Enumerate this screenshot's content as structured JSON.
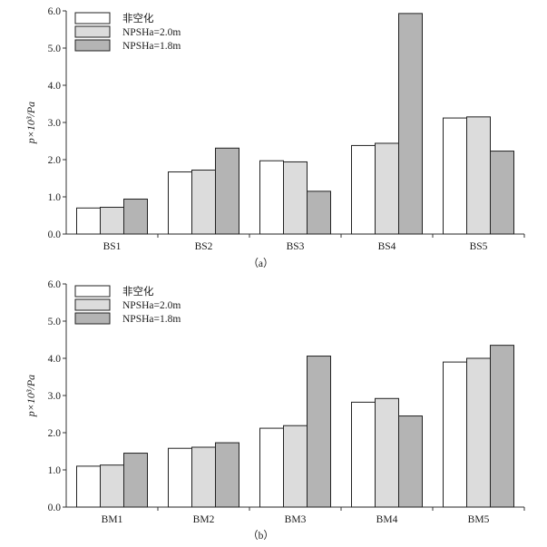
{
  "chart_data": [
    {
      "type": "bar",
      "panel_label": "（a）",
      "ylabel": "p×10³/Pa",
      "ylim": [
        0,
        6
      ],
      "yticks": [
        "0.0",
        "1.0",
        "2.0",
        "3.0",
        "4.0",
        "5.0",
        "6.0"
      ],
      "categories": [
        "BS1",
        "BS2",
        "BS3",
        "BS4",
        "BS5"
      ],
      "legend_position": "top-left",
      "series": [
        {
          "name": "非空化",
          "color": "#ffffff",
          "values": [
            0.7,
            1.67,
            1.97,
            2.38,
            3.12
          ]
        },
        {
          "name": "NPSHa=2.0m",
          "color": "#dcdcdc",
          "values": [
            0.72,
            1.72,
            1.94,
            2.44,
            3.15
          ]
        },
        {
          "name": "NPSHa=1.8m",
          "color": "#b4b4b4",
          "values": [
            0.94,
            2.31,
            1.15,
            5.93,
            2.23
          ]
        }
      ]
    },
    {
      "type": "bar",
      "panel_label": "（b）",
      "ylabel": "p×10³/Pa",
      "ylim": [
        0,
        6
      ],
      "yticks": [
        "0.0",
        "1.0",
        "2.0",
        "3.0",
        "4.0",
        "5.0",
        "6.0"
      ],
      "categories": [
        "BM1",
        "BM2",
        "BM3",
        "BM4",
        "BM5"
      ],
      "legend_position": "top-left",
      "series": [
        {
          "name": "非空化",
          "color": "#ffffff",
          "values": [
            1.1,
            1.58,
            2.12,
            2.82,
            3.9
          ]
        },
        {
          "name": "NPSHa=2.0m",
          "color": "#dcdcdc",
          "values": [
            1.13,
            1.61,
            2.19,
            2.92,
            4.0
          ]
        },
        {
          "name": "NPSHa=1.8m",
          "color": "#b4b4b4",
          "values": [
            1.45,
            1.73,
            4.06,
            2.45,
            4.35
          ]
        }
      ]
    }
  ]
}
